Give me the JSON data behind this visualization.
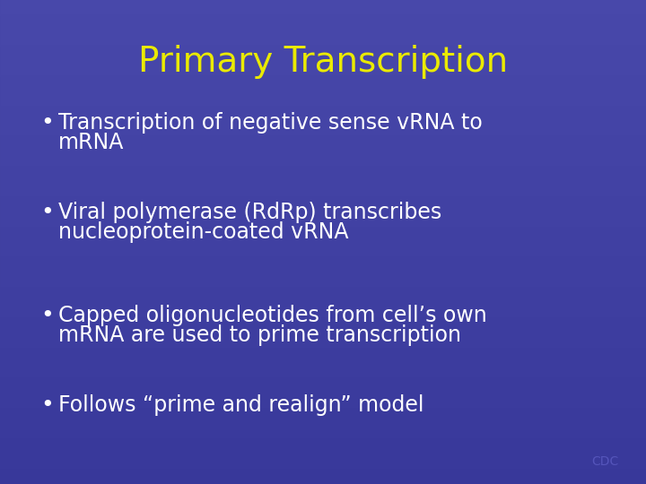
{
  "title": "Primary Transcription",
  "title_color": "#EAEA00",
  "title_fontsize": 28,
  "title_fontweight": "normal",
  "bullet_color": "#FFFFFF",
  "bullet_fontsize": 17,
  "background_color": "#4444A0",
  "bg_top_color": "#4848AA",
  "bg_bottom_color": "#3838A0",
  "bullets": [
    "Transcription of negative sense vRNA to\nmRNA",
    "Viral polymerase (RdRp) transcribes\nnucleoprotein-coated vRNA",
    "Capped oligonucleotides from cell’s own\nmRNA are used to prime transcription",
    "Follows “prime and realign” model"
  ],
  "cdc_text": "CDC",
  "cdc_color": "#5555BB",
  "cdc_fontsize": 10,
  "figwidth": 7.2,
  "figheight": 5.4,
  "dpi": 100
}
